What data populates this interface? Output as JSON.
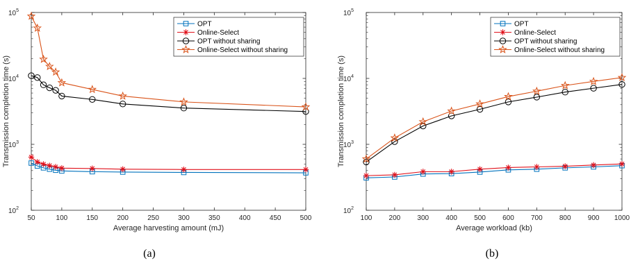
{
  "colors": {
    "opt": "#0072BD",
    "online_select": "#E0101A",
    "opt_no_share": "#000000",
    "online_no_share": "#D95319",
    "axis": "#262626"
  },
  "chart_data": [
    {
      "type": "line",
      "caption": "(a)",
      "xlabel": "Average harvesting amount (mJ)",
      "ylabel": "Transmission completion time (s)",
      "yscale": "log",
      "xlim": [
        50,
        500
      ],
      "ylim": [
        100,
        100000
      ],
      "xticks": [
        50,
        100,
        150,
        200,
        250,
        300,
        350,
        400,
        450,
        500
      ],
      "yticks": [
        100,
        1000,
        10000,
        100000
      ],
      "ytick_labels": [
        [
          "10",
          "2"
        ],
        [
          "10",
          "3"
        ],
        [
          "10",
          "4"
        ],
        [
          "10",
          "5"
        ]
      ],
      "grid": false,
      "legend_position": "top-right",
      "x": [
        50,
        60,
        70,
        80,
        90,
        100,
        150,
        200,
        300,
        500
      ],
      "series": [
        {
          "name": "OPT",
          "marker": "square",
          "color_key": "opt",
          "values": [
            520,
            470,
            440,
            420,
            405,
            395,
            385,
            380,
            375,
            370
          ]
        },
        {
          "name": "Online-Select",
          "marker": "asterisk",
          "color_key": "online_select",
          "values": [
            640,
            540,
            500,
            475,
            455,
            435,
            430,
            420,
            415,
            415
          ]
        },
        {
          "name": "OPT without sharing",
          "marker": "circle",
          "color_key": "opt_no_share",
          "values": [
            11000,
            10300,
            8000,
            7200,
            6600,
            5400,
            4800,
            4100,
            3550,
            3150
          ]
        },
        {
          "name": "Online-Select without sharing",
          "marker": "star",
          "color_key": "online_no_share",
          "values": [
            88000,
            58000,
            19500,
            15200,
            12500,
            8600,
            6800,
            5400,
            4400,
            3700
          ]
        }
      ]
    },
    {
      "type": "line",
      "caption": "(b)",
      "xlabel": "Average workload (kb)",
      "ylabel": "Transmission completion time (s)",
      "yscale": "log",
      "xlim": [
        100,
        1000
      ],
      "ylim": [
        100,
        100000
      ],
      "xticks": [
        100,
        200,
        300,
        400,
        500,
        600,
        700,
        800,
        900,
        1000
      ],
      "yticks": [
        100,
        1000,
        10000,
        100000
      ],
      "ytick_labels": [
        [
          "10",
          "2"
        ],
        [
          "10",
          "3"
        ],
        [
          "10",
          "4"
        ],
        [
          "10",
          "5"
        ]
      ],
      "grid": false,
      "legend_position": "top-right",
      "x": [
        100,
        200,
        300,
        400,
        500,
        600,
        700,
        800,
        900,
        1000
      ],
      "series": [
        {
          "name": "OPT",
          "marker": "square",
          "color_key": "opt",
          "values": [
            310,
            320,
            355,
            360,
            380,
            410,
            420,
            440,
            455,
            475
          ]
        },
        {
          "name": "Online-Select",
          "marker": "asterisk",
          "color_key": "online_select",
          "values": [
            335,
            345,
            385,
            385,
            420,
            445,
            455,
            465,
            485,
            505
          ]
        },
        {
          "name": "OPT without sharing",
          "marker": "circle",
          "color_key": "opt_no_share",
          "values": [
            540,
            1100,
            1900,
            2700,
            3400,
            4400,
            5200,
            6200,
            7100,
            8100
          ]
        },
        {
          "name": "Online-Select without sharing",
          "marker": "star",
          "color_key": "online_no_share",
          "values": [
            600,
            1250,
            2200,
            3200,
            4100,
            5300,
            6400,
            7800,
            9000,
            10300
          ]
        }
      ]
    }
  ]
}
